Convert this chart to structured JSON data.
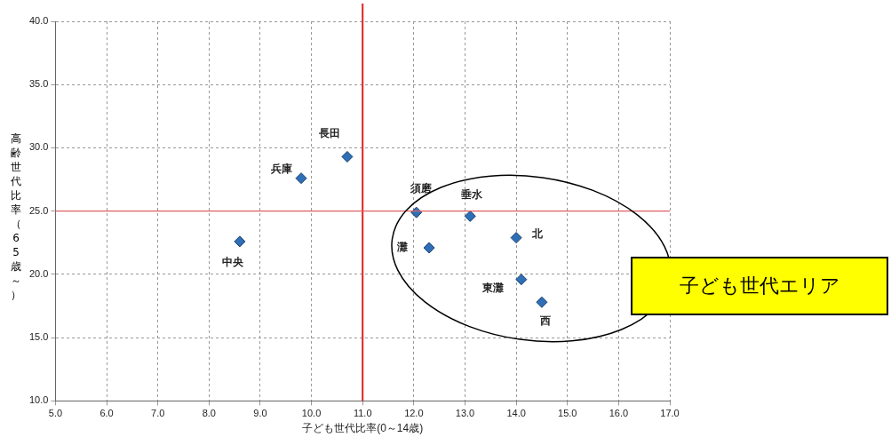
{
  "chart_data": {
    "type": "scatter",
    "xlabel": "子ども世代比率(0～14歳)",
    "ylabel": "高齢世代比率（65歳～）",
    "xlim": [
      5,
      17
    ],
    "ylim": [
      10,
      40
    ],
    "xticks": [
      {
        "value": 5,
        "label": "5.0"
      },
      {
        "value": 6,
        "label": "6.0"
      },
      {
        "value": 7,
        "label": "7.0"
      },
      {
        "value": 8,
        "label": "8.0"
      },
      {
        "value": 9,
        "label": "9.0"
      },
      {
        "value": 10,
        "label": "10.0"
      },
      {
        "value": 11,
        "label": "11.0"
      },
      {
        "value": 12,
        "label": "12.0"
      },
      {
        "value": 13,
        "label": "13.0"
      },
      {
        "value": 14,
        "label": "14.0"
      },
      {
        "value": 15,
        "label": "15.0"
      },
      {
        "value": 16,
        "label": "16.0"
      },
      {
        "value": 17,
        "label": "17.0"
      }
    ],
    "yticks": [
      {
        "value": 10,
        "label": "10.0"
      },
      {
        "value": 15,
        "label": "15.0"
      },
      {
        "value": 20,
        "label": "20.0"
      },
      {
        "value": 25,
        "label": "25.0"
      },
      {
        "value": 30,
        "label": "30.0"
      },
      {
        "value": 35,
        "label": "35.0"
      },
      {
        "value": 40,
        "label": "40.0"
      }
    ],
    "grid": true,
    "legend": false,
    "marker": "diamond",
    "ref_lines": [
      {
        "axis": "x",
        "value": 11,
        "color": "#e02020"
      },
      {
        "axis": "y",
        "value": 25,
        "color": "#e06060"
      }
    ],
    "annotations": [
      "子ども世代エリア"
    ],
    "series": [
      {
        "name": "中央",
        "color": "#2e6fb8",
        "x": [
          8.6
        ],
        "values": [
          22.6
        ]
      },
      {
        "name": "兵庫",
        "color": "#2e6fb8",
        "x": [
          9.8
        ],
        "values": [
          27.6
        ]
      },
      {
        "name": "長田",
        "color": "#2e6fb8",
        "x": [
          10.7
        ],
        "values": [
          29.3
        ]
      },
      {
        "name": "須磨",
        "color": "#2e6fb8",
        "x": [
          12.05
        ],
        "values": [
          24.9
        ]
      },
      {
        "name": "垂水",
        "color": "#2e6fb8",
        "x": [
          13.1
        ],
        "values": [
          24.6
        ]
      },
      {
        "name": "灘",
        "color": "#2e6fb8",
        "x": [
          12.3
        ],
        "values": [
          22.1
        ]
      },
      {
        "name": "北",
        "color": "#2e6fb8",
        "x": [
          14.0
        ],
        "values": [
          22.9
        ]
      },
      {
        "name": "東灘",
        "color": "#2e6fb8",
        "x": [
          14.1
        ],
        "values": [
          19.6
        ]
      },
      {
        "name": "西",
        "color": "#2e6fb8",
        "x": [
          14.5
        ],
        "values": [
          17.8
        ]
      }
    ]
  }
}
